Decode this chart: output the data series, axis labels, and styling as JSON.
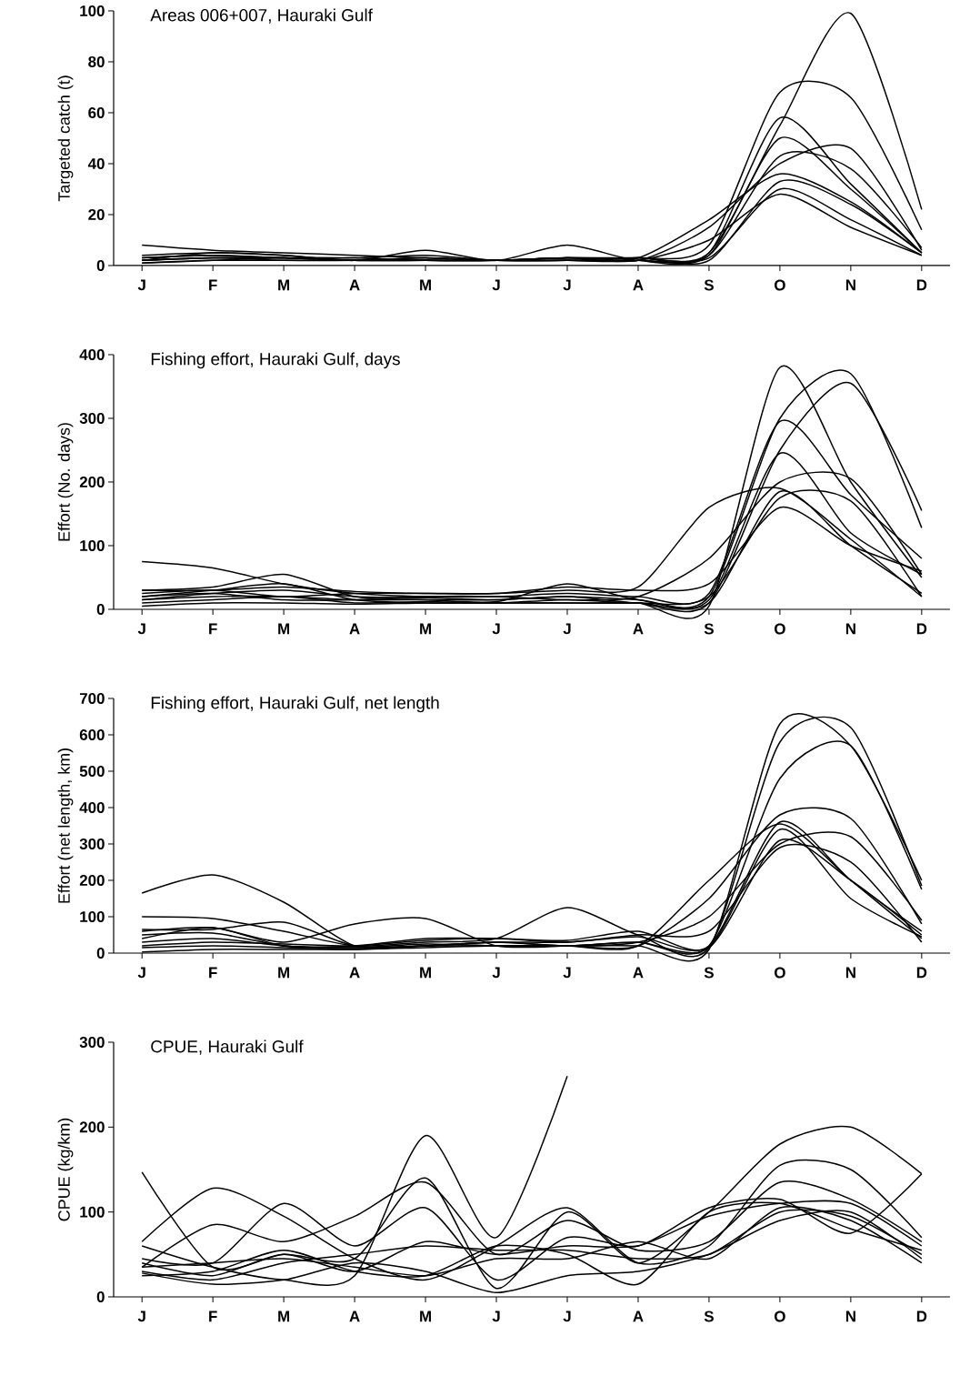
{
  "chart_data": [
    {
      "type": "line",
      "title": "Areas 006+007, Hauraki Gulf",
      "ylabel": "Targeted catch (t)",
      "categories": [
        "J",
        "F",
        "M",
        "A",
        "M",
        "J",
        "J",
        "A",
        "S",
        "O",
        "N",
        "D"
      ],
      "ylim": [
        0,
        100
      ],
      "yticks": [
        0,
        20,
        40,
        60,
        80,
        100
      ],
      "series": [
        {
          "color": "#000000",
          "values": [
            3,
            4,
            3,
            2,
            3,
            2,
            3,
            3,
            5,
            55,
            99,
            22
          ]
        },
        {
          "color": "#000000",
          "values": [
            2,
            3,
            3,
            2,
            2,
            2,
            3,
            3,
            8,
            68,
            66,
            14
          ]
        },
        {
          "color": "#000000",
          "values": [
            8,
            6,
            5,
            4,
            3,
            2,
            2,
            2,
            5,
            58,
            32,
            5
          ]
        },
        {
          "color": "#000000",
          "values": [
            2,
            5,
            4,
            2,
            6,
            2,
            8,
            2,
            4,
            50,
            30,
            5
          ]
        },
        {
          "color": "#000000",
          "values": [
            2,
            3,
            2,
            2,
            2,
            2,
            3,
            2,
            15,
            40,
            46,
            6
          ]
        },
        {
          "color": "#000000",
          "values": [
            3,
            4,
            3,
            3,
            2,
            2,
            2,
            3,
            18,
            36,
            25,
            5
          ]
        },
        {
          "color": "#000000",
          "values": [
            1,
            2,
            3,
            3,
            4,
            2,
            2,
            3,
            2,
            33,
            24,
            5
          ]
        },
        {
          "color": "#000000",
          "values": [
            4,
            5,
            4,
            2,
            3,
            2,
            3,
            3,
            3,
            30,
            18,
            4
          ]
        },
        {
          "color": "#000000",
          "values": [
            2,
            3,
            3,
            2,
            2,
            2,
            2,
            2,
            10,
            28,
            15,
            4
          ]
        },
        {
          "color": "#000000",
          "values": [
            1,
            2,
            2,
            2,
            2,
            2,
            3,
            2,
            4,
            43,
            38,
            7
          ]
        }
      ]
    },
    {
      "type": "line",
      "title": "Fishing effort, Hauraki Gulf, days",
      "ylabel": "Effort (No. days)",
      "categories": [
        "J",
        "F",
        "M",
        "A",
        "M",
        "J",
        "J",
        "A",
        "S",
        "O",
        "N",
        "D"
      ],
      "ylim": [
        0,
        400
      ],
      "yticks": [
        0,
        100,
        200,
        300,
        400
      ],
      "series": [
        {
          "color": "#000000",
          "values": [
            20,
            30,
            40,
            15,
            10,
            10,
            10,
            10,
            5,
            380,
            200,
            50
          ]
        },
        {
          "color": "#000000",
          "values": [
            30,
            35,
            55,
            20,
            15,
            12,
            40,
            15,
            20,
            300,
            370,
            128
          ]
        },
        {
          "color": "#000000",
          "values": [
            15,
            25,
            30,
            20,
            18,
            15,
            20,
            10,
            10,
            250,
            355,
            155
          ]
        },
        {
          "color": "#000000",
          "values": [
            75,
            65,
            40,
            25,
            20,
            20,
            25,
            20,
            25,
            295,
            180,
            80
          ]
        },
        {
          "color": "#000000",
          "values": [
            10,
            15,
            20,
            10,
            12,
            10,
            15,
            10,
            15,
            245,
            120,
            55
          ]
        },
        {
          "color": "#000000",
          "values": [
            25,
            30,
            20,
            25,
            25,
            25,
            30,
            35,
            160,
            190,
            110,
            20
          ]
        },
        {
          "color": "#000000",
          "values": [
            20,
            25,
            15,
            15,
            20,
            20,
            15,
            20,
            80,
            200,
            205,
            55
          ]
        },
        {
          "color": "#000000",
          "values": [
            5,
            10,
            10,
            8,
            10,
            10,
            10,
            10,
            20,
            175,
            170,
            20
          ]
        },
        {
          "color": "#000000",
          "values": [
            30,
            30,
            35,
            28,
            25,
            25,
            35,
            30,
            40,
            160,
            100,
            60
          ]
        },
        {
          "color": "#000000",
          "values": [
            15,
            20,
            20,
            15,
            15,
            15,
            20,
            15,
            10,
            185,
            100,
            25
          ]
        }
      ]
    },
    {
      "type": "line",
      "title": "Fishing effort, Hauraki Gulf, net length",
      "ylabel": "Effort (net length, km)",
      "categories": [
        "J",
        "F",
        "M",
        "A",
        "M",
        "J",
        "J",
        "A",
        "S",
        "O",
        "N",
        "D"
      ],
      "ylim": [
        0,
        700
      ],
      "yticks": [
        0,
        100,
        200,
        300,
        400,
        500,
        600,
        700
      ],
      "series": [
        {
          "color": "#000000",
          "values": [
            165,
            215,
            140,
            20,
            20,
            20,
            20,
            20,
            10,
            630,
            570,
            200
          ]
        },
        {
          "color": "#000000",
          "values": [
            100,
            95,
            60,
            20,
            30,
            40,
            125,
            50,
            15,
            580,
            620,
            185
          ]
        },
        {
          "color": "#000000",
          "values": [
            60,
            70,
            30,
            80,
            95,
            20,
            20,
            30,
            20,
            480,
            570,
            175
          ]
        },
        {
          "color": "#000000",
          "values": [
            65,
            65,
            85,
            20,
            20,
            30,
            20,
            20,
            200,
            355,
            200,
            40
          ]
        },
        {
          "color": "#000000",
          "values": [
            50,
            55,
            20,
            15,
            25,
            20,
            20,
            20,
            150,
            380,
            370,
            80
          ]
        },
        {
          "color": "#000000",
          "values": [
            30,
            40,
            20,
            15,
            20,
            30,
            20,
            30,
            100,
            300,
            320,
            90
          ]
        },
        {
          "color": "#000000",
          "values": [
            20,
            30,
            25,
            20,
            35,
            40,
            30,
            45,
            20,
            360,
            200,
            60
          ]
        },
        {
          "color": "#000000",
          "values": [
            15,
            20,
            15,
            10,
            20,
            30,
            30,
            50,
            60,
            290,
            250,
            30
          ]
        },
        {
          "color": "#000000",
          "values": [
            40,
            70,
            20,
            20,
            40,
            40,
            35,
            60,
            15,
            310,
            200,
            50
          ]
        },
        {
          "color": "#000000",
          "values": [
            3,
            10,
            10,
            10,
            15,
            20,
            20,
            30,
            15,
            340,
            150,
            45
          ]
        }
      ]
    },
    {
      "type": "line",
      "title": "CPUE, Hauraki Gulf",
      "ylabel": "CPUE (kg/km)",
      "categories": [
        "J",
        "F",
        "M",
        "A",
        "M",
        "J",
        "J",
        "A",
        "S",
        "O",
        "N",
        "D"
      ],
      "ylim": [
        0,
        300
      ],
      "yticks": [
        0,
        100,
        200,
        300
      ],
      "series": [
        {
          "color": "#000000",
          "values": [
            60,
            35,
            20,
            25,
            190,
            70,
            260,
            null,
            null,
            null,
            null,
            null
          ]
        },
        {
          "color": "#000000",
          "values": [
            147,
            35,
            50,
            45,
            140,
            10,
            100,
            40,
            100,
            180,
            200,
            145
          ]
        },
        {
          "color": "#000000",
          "values": [
            65,
            128,
            95,
            45,
            20,
            60,
            105,
            40,
            60,
            155,
            150,
            70
          ]
        },
        {
          "color": "#000000",
          "values": [
            35,
            85,
            65,
            95,
            135,
            50,
            90,
            55,
            65,
            135,
            115,
            65
          ]
        },
        {
          "color": "#000000",
          "values": [
            45,
            40,
            110,
            60,
            105,
            20,
            70,
            60,
            105,
            115,
            75,
            145
          ]
        },
        {
          "color": "#000000",
          "values": [
            40,
            25,
            50,
            30,
            65,
            50,
            60,
            60,
            95,
            110,
            110,
            60
          ]
        },
        {
          "color": "#000000",
          "values": [
            30,
            20,
            40,
            50,
            60,
            55,
            55,
            45,
            50,
            100,
            95,
            50
          ]
        },
        {
          "color": "#000000",
          "values": [
            28,
            15,
            20,
            40,
            30,
            5,
            25,
            30,
            50,
            90,
            100,
            45
          ]
        },
        {
          "color": "#000000",
          "values": [
            35,
            40,
            45,
            35,
            25,
            45,
            45,
            65,
            45,
            105,
            90,
            40
          ]
        },
        {
          "color": "#000000",
          "values": [
            25,
            30,
            55,
            30,
            25,
            60,
            50,
            15,
            100,
            110,
            80,
            55
          ]
        }
      ]
    }
  ]
}
